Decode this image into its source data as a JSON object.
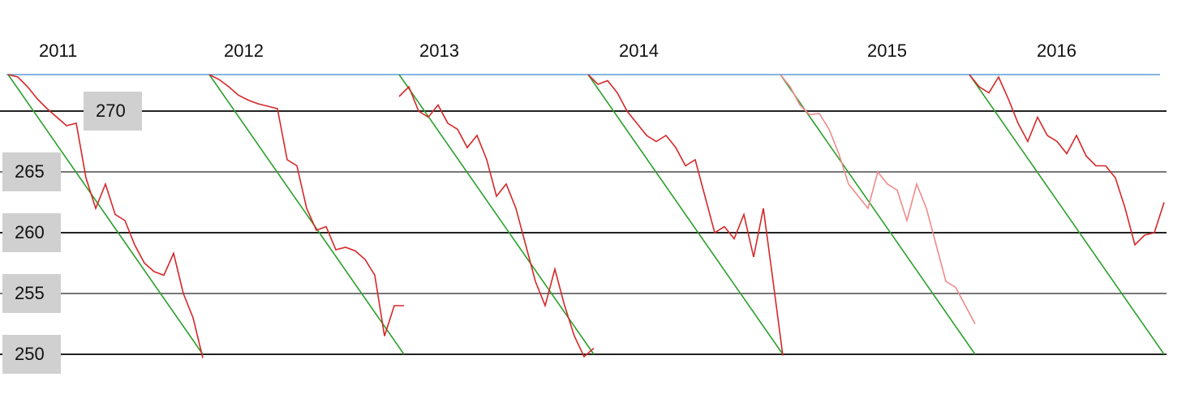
{
  "chart_data": {
    "type": "line",
    "ylim": [
      247,
      274.5
    ],
    "yticks": [
      250,
      255,
      260,
      265,
      270
    ],
    "reference_line": {
      "value": 273,
      "color": "#5b9bd5"
    },
    "panels": [
      {
        "label": "2011",
        "xlim": [
          0,
          20
        ],
        "series": [
          {
            "color": "#2ca02c",
            "x": [
              0,
              20
            ],
            "values": [
              273,
              250
            ]
          },
          {
            "color": "#d62728",
            "x": [
              0,
              1,
              2,
              3,
              4,
              5,
              6,
              7,
              8,
              9,
              10,
              11,
              12,
              13,
              14,
              15,
              16,
              17,
              18,
              19,
              20
            ],
            "values": [
              273,
              272.8,
              272,
              271,
              270.2,
              269.5,
              268.8,
              269,
              264.5,
              262,
              264,
              261.5,
              261,
              259,
              257.5,
              256.8,
              256.5,
              258.3,
              255,
              253,
              249.7
            ]
          }
        ]
      },
      {
        "label": "2012",
        "xlim": [
          0,
          20
        ],
        "series": [
          {
            "color": "#2ca02c",
            "x": [
              0,
              20
            ],
            "values": [
              273,
              250
            ]
          },
          {
            "color": "#d62728",
            "x": [
              0,
              1,
              2,
              3,
              4,
              5,
              6,
              7,
              8,
              9,
              10,
              11,
              12,
              13,
              14,
              15,
              16,
              17,
              18,
              19,
              20
            ],
            "values": [
              273,
              272.6,
              272,
              271.3,
              270.9,
              270.6,
              270.4,
              270.2,
              266,
              265.5,
              262,
              260.2,
              260.5,
              258.6,
              258.8,
              258.5,
              257.8,
              256.5,
              251.5,
              254,
              254
            ]
          }
        ]
      },
      {
        "label": "2013",
        "xlim": [
          0,
          20
        ],
        "series": [
          {
            "color": "#2ca02c",
            "x": [
              0,
              20
            ],
            "values": [
              273,
              250
            ]
          },
          {
            "color": "#d62728",
            "x": [
              0,
              1,
              2,
              3,
              4,
              5,
              6,
              7,
              8,
              9,
              10,
              11,
              12,
              13,
              14,
              15,
              16,
              17,
              18,
              19,
              20
            ],
            "values": [
              271.2,
              272,
              270,
              269.5,
              270.5,
              269,
              268.5,
              267,
              268,
              266,
              263,
              264,
              262,
              259,
              256,
              254,
              257,
              254,
              251.5,
              249.8,
              250.5
            ]
          }
        ]
      },
      {
        "label": "2014",
        "xlim": [
          0,
          20
        ],
        "series": [
          {
            "color": "#2ca02c",
            "x": [
              0,
              20
            ],
            "values": [
              273,
              250
            ]
          },
          {
            "color": "#d62728",
            "x": [
              0,
              1,
              2,
              3,
              4,
              5,
              6,
              7,
              8,
              9,
              10,
              11,
              12,
              13,
              14,
              15,
              16,
              17,
              18,
              19,
              20
            ],
            "values": [
              273,
              272.2,
              272.5,
              271.5,
              270,
              269,
              268,
              267.5,
              268,
              267,
              265.5,
              266,
              263,
              260,
              260.5,
              259.5,
              261.5,
              258,
              262,
              256,
              249.9
            ]
          }
        ]
      },
      {
        "label": "2015",
        "xlim": [
          0,
          20
        ],
        "series": [
          {
            "color": "#2ca02c",
            "x": [
              0,
              20
            ],
            "values": [
              273,
              250
            ]
          },
          {
            "color": "#f08a8a",
            "x": [
              0,
              1,
              2,
              3,
              4,
              5,
              6,
              7,
              8,
              9,
              10,
              11,
              12,
              13,
              14,
              15,
              16,
              17,
              18,
              19,
              20
            ],
            "values": [
              273,
              272,
              270.5,
              269.7,
              269.8,
              268.5,
              266.5,
              264,
              263,
              262,
              265,
              264,
              263.5,
              261,
              264,
              262,
              259,
              256,
              255.5,
              254,
              252.5
            ]
          }
        ]
      },
      {
        "label": "2016",
        "xlim": [
          0,
          20
        ],
        "series": [
          {
            "color": "#2ca02c",
            "x": [
              0,
              20
            ],
            "values": [
              273,
              250
            ]
          },
          {
            "color": "#d62728",
            "x": [
              0,
              1,
              2,
              3,
              4,
              5,
              6,
              7,
              8,
              9,
              10,
              11,
              12,
              13,
              14,
              15,
              16,
              17,
              18,
              19,
              20
            ],
            "values": [
              273,
              272,
              271.5,
              272.8,
              271,
              269,
              267.5,
              269.5,
              268,
              267.5,
              266.5,
              268,
              266.3,
              265.5,
              265.5,
              264.5,
              262,
              259,
              259.8,
              260,
              262.5
            ]
          }
        ]
      }
    ]
  }
}
